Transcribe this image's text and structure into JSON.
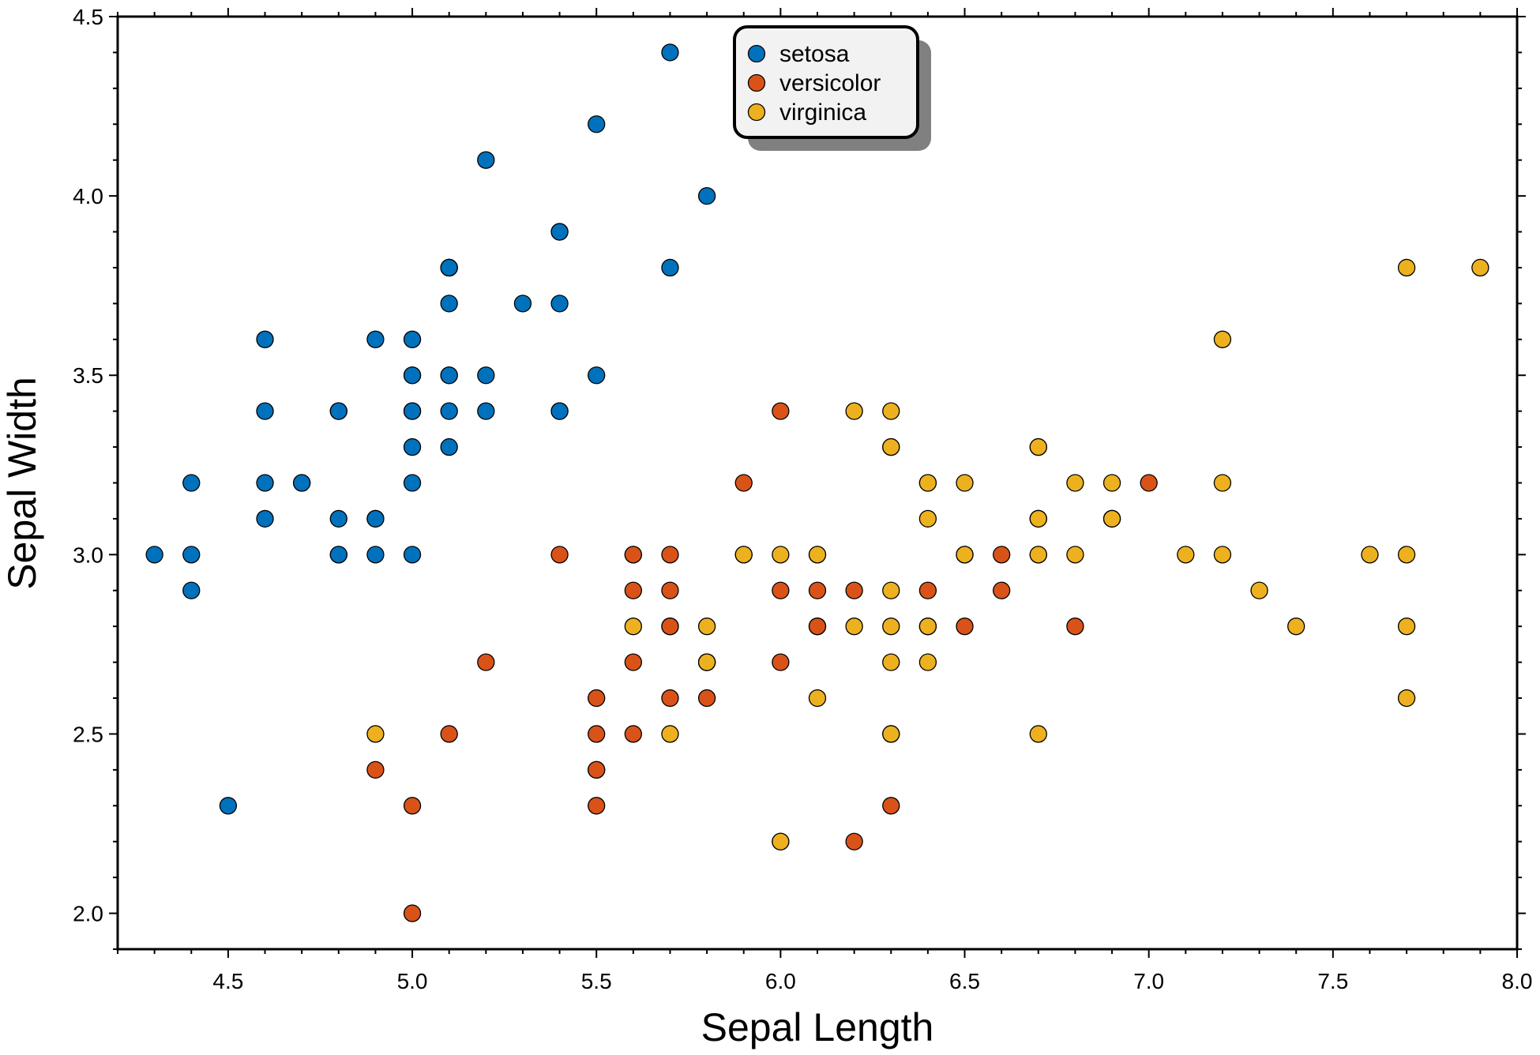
{
  "chart_data": {
    "type": "scatter",
    "title": "",
    "xlabel": "Sepal Length",
    "ylabel": "Sepal Width",
    "xlim": [
      4.2,
      8.0
    ],
    "ylim": [
      1.9,
      4.5
    ],
    "xticks": [
      "4.5",
      "5.0",
      "5.5",
      "6.0",
      "6.5",
      "7.0",
      "7.5",
      "8.0"
    ],
    "yticks": [
      "2.0",
      "2.5",
      "3.0",
      "3.5",
      "4.0",
      "4.5"
    ],
    "grid": false,
    "legend_placement": "top-center",
    "series": [
      {
        "name": "setosa",
        "color": "#0072BD",
        "points": [
          [
            5.1,
            3.5
          ],
          [
            4.9,
            3.0
          ],
          [
            4.7,
            3.2
          ],
          [
            4.6,
            3.1
          ],
          [
            5.0,
            3.6
          ],
          [
            5.4,
            3.9
          ],
          [
            4.6,
            3.4
          ],
          [
            5.0,
            3.4
          ],
          [
            4.4,
            2.9
          ],
          [
            4.9,
            3.1
          ],
          [
            5.4,
            3.7
          ],
          [
            4.8,
            3.4
          ],
          [
            4.8,
            3.0
          ],
          [
            4.3,
            3.0
          ],
          [
            5.8,
            4.0
          ],
          [
            5.7,
            4.4
          ],
          [
            5.4,
            3.9
          ],
          [
            5.1,
            3.5
          ],
          [
            5.7,
            3.8
          ],
          [
            5.1,
            3.8
          ],
          [
            5.4,
            3.4
          ],
          [
            5.1,
            3.7
          ],
          [
            4.6,
            3.6
          ],
          [
            5.1,
            3.3
          ],
          [
            4.8,
            3.4
          ],
          [
            5.0,
            3.0
          ],
          [
            5.0,
            3.4
          ],
          [
            5.2,
            3.5
          ],
          [
            5.2,
            3.4
          ],
          [
            4.7,
            3.2
          ],
          [
            4.8,
            3.1
          ],
          [
            5.4,
            3.4
          ],
          [
            5.2,
            4.1
          ],
          [
            5.5,
            4.2
          ],
          [
            4.9,
            3.1
          ],
          [
            5.0,
            3.2
          ],
          [
            5.5,
            3.5
          ],
          [
            4.9,
            3.6
          ],
          [
            4.4,
            3.0
          ],
          [
            5.1,
            3.4
          ],
          [
            5.0,
            3.5
          ],
          [
            4.5,
            2.3
          ],
          [
            4.4,
            3.2
          ],
          [
            5.0,
            3.5
          ],
          [
            5.1,
            3.8
          ],
          [
            4.8,
            3.0
          ],
          [
            5.1,
            3.8
          ],
          [
            4.6,
            3.2
          ],
          [
            5.3,
            3.7
          ],
          [
            5.0,
            3.3
          ]
        ]
      },
      {
        "name": "versicolor",
        "color": "#D95319",
        "points": [
          [
            7.0,
            3.2
          ],
          [
            6.4,
            3.2
          ],
          [
            6.9,
            3.1
          ],
          [
            5.5,
            2.3
          ],
          [
            6.5,
            2.8
          ],
          [
            5.7,
            2.8
          ],
          [
            6.3,
            3.3
          ],
          [
            4.9,
            2.4
          ],
          [
            6.6,
            2.9
          ],
          [
            5.2,
            2.7
          ],
          [
            5.0,
            2.0
          ],
          [
            5.9,
            3.0
          ],
          [
            6.0,
            2.2
          ],
          [
            6.1,
            2.9
          ],
          [
            5.6,
            2.9
          ],
          [
            6.7,
            3.1
          ],
          [
            5.6,
            3.0
          ],
          [
            5.8,
            2.7
          ],
          [
            6.2,
            2.2
          ],
          [
            5.6,
            2.5
          ],
          [
            5.9,
            3.2
          ],
          [
            6.1,
            2.8
          ],
          [
            6.3,
            2.5
          ],
          [
            6.1,
            2.8
          ],
          [
            6.4,
            2.9
          ],
          [
            6.6,
            3.0
          ],
          [
            6.8,
            2.8
          ],
          [
            6.7,
            3.0
          ],
          [
            6.0,
            2.9
          ],
          [
            5.7,
            2.6
          ],
          [
            5.5,
            2.4
          ],
          [
            5.5,
            2.4
          ],
          [
            5.8,
            2.7
          ],
          [
            6.0,
            2.7
          ],
          [
            5.4,
            3.0
          ],
          [
            6.0,
            3.4
          ],
          [
            6.7,
            3.1
          ],
          [
            6.3,
            2.3
          ],
          [
            5.6,
            3.0
          ],
          [
            5.5,
            2.5
          ],
          [
            5.5,
            2.6
          ],
          [
            6.1,
            3.0
          ],
          [
            5.8,
            2.6
          ],
          [
            5.0,
            2.3
          ],
          [
            5.6,
            2.7
          ],
          [
            5.7,
            3.0
          ],
          [
            5.7,
            2.9
          ],
          [
            6.2,
            2.9
          ],
          [
            5.1,
            2.5
          ],
          [
            5.7,
            2.8
          ]
        ]
      },
      {
        "name": "virginica",
        "color": "#EDB120",
        "points": [
          [
            6.3,
            3.3
          ],
          [
            5.8,
            2.7
          ],
          [
            7.1,
            3.0
          ],
          [
            6.3,
            2.9
          ],
          [
            6.5,
            3.0
          ],
          [
            7.6,
            3.0
          ],
          [
            4.9,
            2.5
          ],
          [
            7.3,
            2.9
          ],
          [
            6.7,
            2.5
          ],
          [
            7.2,
            3.6
          ],
          [
            6.5,
            3.2
          ],
          [
            6.4,
            2.7
          ],
          [
            6.8,
            3.0
          ],
          [
            5.7,
            2.5
          ],
          [
            5.8,
            2.8
          ],
          [
            6.4,
            3.2
          ],
          [
            6.5,
            3.0
          ],
          [
            7.7,
            3.8
          ],
          [
            7.7,
            2.6
          ],
          [
            6.0,
            2.2
          ],
          [
            6.9,
            3.2
          ],
          [
            5.6,
            2.8
          ],
          [
            7.7,
            2.8
          ],
          [
            6.3,
            2.7
          ],
          [
            6.7,
            3.3
          ],
          [
            7.2,
            3.2
          ],
          [
            6.2,
            2.8
          ],
          [
            6.1,
            3.0
          ],
          [
            6.4,
            2.8
          ],
          [
            7.2,
            3.0
          ],
          [
            7.4,
            2.8
          ],
          [
            7.9,
            3.8
          ],
          [
            6.4,
            2.8
          ],
          [
            6.3,
            2.8
          ],
          [
            6.1,
            2.6
          ],
          [
            7.7,
            3.0
          ],
          [
            6.3,
            3.4
          ],
          [
            6.4,
            3.1
          ],
          [
            6.0,
            3.0
          ],
          [
            6.9,
            3.1
          ],
          [
            6.7,
            3.1
          ],
          [
            6.9,
            3.1
          ],
          [
            5.8,
            2.7
          ],
          [
            6.8,
            3.2
          ],
          [
            6.7,
            3.3
          ],
          [
            6.7,
            3.0
          ],
          [
            6.3,
            2.5
          ],
          [
            6.5,
            3.0
          ],
          [
            6.2,
            3.4
          ],
          [
            5.9,
            3.0
          ]
        ]
      }
    ]
  }
}
